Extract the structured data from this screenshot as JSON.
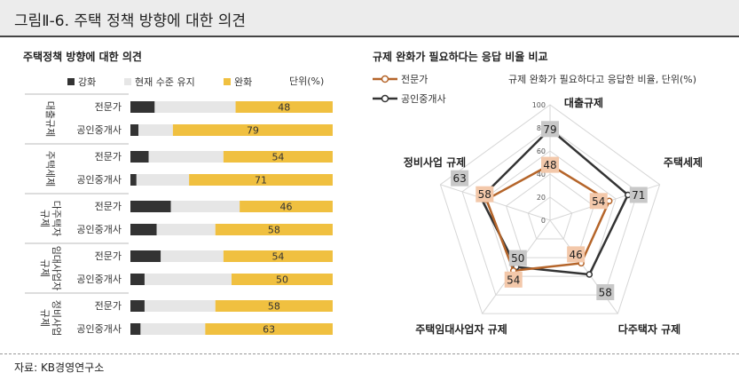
{
  "header": {
    "title": "그림Ⅱ-6. 주택 정책 방향에 대한 의견"
  },
  "source": "자료: KB경영연구소",
  "chart_data": [
    {
      "type": "bar",
      "title": "주택정책 방향에 대한 의견",
      "unit": "단위(%)",
      "stacked": true,
      "legend": [
        "강화",
        "현재 수준 유지",
        "완화"
      ],
      "colors": [
        "#333333",
        "#e6e6e6",
        "#f0c040"
      ],
      "groups": [
        "대출규제",
        "주택세제",
        "다주택자 규제",
        "임대사업자 규제",
        "정비사업 규제"
      ],
      "group_labels": [
        [
          "대출규제"
        ],
        [
          "주택세제"
        ],
        [
          "다주택자",
          "규제"
        ],
        [
          "임대사업자",
          "규제"
        ],
        [
          "정비사업",
          "규제"
        ]
      ],
      "respondents": [
        "전문가",
        "공인중개사"
      ],
      "series": [
        {
          "name": "강화",
          "values": [
            [
              12,
              4
            ],
            [
              9,
              3
            ],
            [
              20,
              13
            ],
            [
              15,
              7
            ],
            [
              7,
              5
            ]
          ]
        },
        {
          "name": "현재 수준 유지",
          "values": [
            [
              40,
              17
            ],
            [
              37,
              26
            ],
            [
              34,
              29
            ],
            [
              31,
              43
            ],
            [
              35,
              32
            ]
          ]
        },
        {
          "name": "완화",
          "values": [
            [
              48,
              79
            ],
            [
              54,
              71
            ],
            [
              46,
              58
            ],
            [
              54,
              50
            ],
            [
              58,
              63
            ]
          ]
        }
      ]
    },
    {
      "type": "radar",
      "title": "규제 완화가 필요하다는 응답 비율 비교",
      "subtitle": "규제 완화가 필요하다고 응답한 비율, 단위(%)",
      "axes": [
        "대출규제",
        "주택세제",
        "다주택자 규제",
        "주택임대사업자 규제",
        "정비사업 규제"
      ],
      "ticks": [
        0,
        20,
        40,
        60,
        80,
        100
      ],
      "range": [
        0,
        100
      ],
      "series": [
        {
          "name": "전문가",
          "values": [
            48,
            54,
            46,
            54,
            58
          ],
          "color": "#b5652a",
          "label_bg": "#f3c8aa"
        },
        {
          "name": "공인중개사",
          "values": [
            79,
            71,
            58,
            50,
            63
          ],
          "color": "#333333",
          "label_bg": "#c8c8c8"
        }
      ]
    }
  ]
}
